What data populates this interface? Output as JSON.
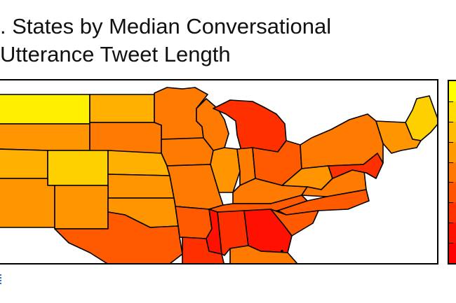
{
  "title": {
    "line1": ". States by Median Conversational",
    "line2": "Utterance Tweet Length"
  },
  "legend": {
    "type": "continuous color bar",
    "colors_top_to_bottom": [
      "#FFFF00",
      "#FFDD00",
      "#FFBB00",
      "#FF9900",
      "#FF7700",
      "#FF5500",
      "#FF3300",
      "#FF1100",
      "#FF0000"
    ]
  },
  "palette": {
    "yellow": "#FFF000",
    "gold": "#FFD000",
    "amber": "#FFB000",
    "orange": "#FF9500",
    "dark-orange": "#FF7A00",
    "red-orange": "#FF5A00",
    "red": "#FF3000",
    "deep-red": "#FF1000"
  },
  "regions": [
    {
      "name": "montana",
      "color": "yellow"
    },
    {
      "name": "north-dakota",
      "color": "amber"
    },
    {
      "name": "minnesota",
      "color": "dark-orange"
    },
    {
      "name": "wisconsin",
      "color": "dark-orange"
    },
    {
      "name": "michigan",
      "color": "red"
    },
    {
      "name": "maine",
      "color": "gold"
    },
    {
      "name": "idaho-wyoming",
      "color": "orange"
    },
    {
      "name": "south-dakota",
      "color": "dark-orange"
    },
    {
      "name": "iowa",
      "color": "dark-orange"
    },
    {
      "name": "illinois",
      "color": "orange"
    },
    {
      "name": "indiana",
      "color": "dark-orange"
    },
    {
      "name": "ohio",
      "color": "red-orange"
    },
    {
      "name": "new-york-pennsylvania",
      "color": "dark-orange"
    },
    {
      "name": "new-england",
      "color": "orange"
    },
    {
      "name": "utah",
      "color": "amber"
    },
    {
      "name": "colorado",
      "color": "gold"
    },
    {
      "name": "nebraska",
      "color": "amber"
    },
    {
      "name": "kansas",
      "color": "orange"
    },
    {
      "name": "missouri",
      "color": "dark-orange"
    },
    {
      "name": "kentucky",
      "color": "dark-orange"
    },
    {
      "name": "west-virginia",
      "color": "orange"
    },
    {
      "name": "virginia",
      "color": "dark-orange"
    },
    {
      "name": "maryland-delaware",
      "color": "red"
    },
    {
      "name": "nevada-arizona",
      "color": "orange"
    },
    {
      "name": "new-mexico",
      "color": "orange"
    },
    {
      "name": "oklahoma",
      "color": "orange"
    },
    {
      "name": "arkansas",
      "color": "red-orange"
    },
    {
      "name": "tennessee",
      "color": "red-orange"
    },
    {
      "name": "north-carolina",
      "color": "red-orange"
    },
    {
      "name": "texas",
      "color": "red-orange"
    },
    {
      "name": "louisiana",
      "color": "red"
    },
    {
      "name": "mississippi",
      "color": "deep-red"
    },
    {
      "name": "alabama",
      "color": "red"
    },
    {
      "name": "georgia",
      "color": "deep-red"
    },
    {
      "name": "south-carolina",
      "color": "red-orange"
    },
    {
      "name": "florida",
      "color": "dark-orange"
    }
  ]
}
